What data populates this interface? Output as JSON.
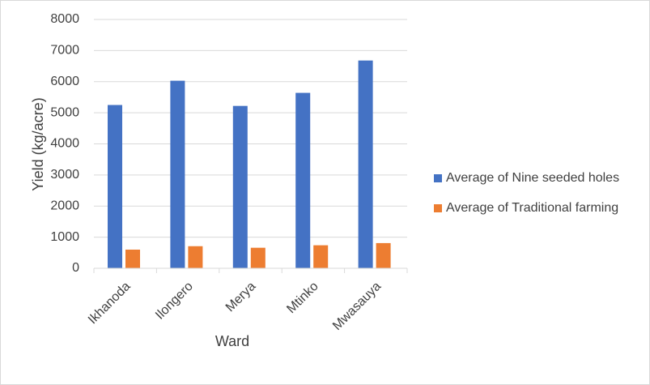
{
  "chart_data": {
    "type": "bar",
    "title": "",
    "xlabel": "Ward",
    "ylabel": "Yield (kg/acre)",
    "categories": [
      "Ikhanoda",
      "Ilongero",
      "Merya",
      "Mtinko",
      "Mwasauya"
    ],
    "series": [
      {
        "name": "Average of Nine seeded holes",
        "color": "#4472C4",
        "values": [
          5250,
          6030,
          5220,
          5640,
          6680
        ]
      },
      {
        "name": "Average of Traditional farming",
        "color": "#ED7D31",
        "values": [
          600,
          710,
          660,
          740,
          810
        ]
      }
    ],
    "ylim": [
      0,
      8000
    ],
    "yticks": [
      0,
      1000,
      2000,
      3000,
      4000,
      5000,
      6000,
      7000,
      8000
    ],
    "grid": true,
    "legend_position": "right"
  }
}
